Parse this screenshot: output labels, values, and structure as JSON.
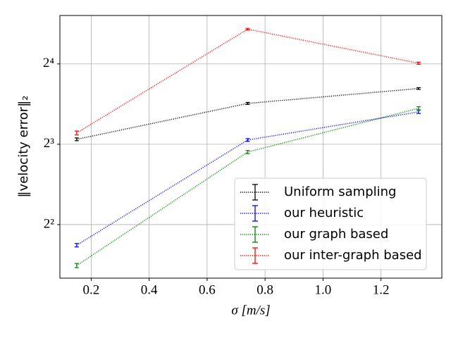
{
  "chart_data": {
    "type": "line",
    "x_label": "σ [m/s]",
    "y_label": "‖velocity error‖₂",
    "x": [
      0.15,
      0.74,
      1.33
    ],
    "series": [
      {
        "name": "Uniform sampling",
        "color": "#000000",
        "values": [
          8.35,
          11.38,
          12.94
        ],
        "errors": [
          0.1,
          0.1,
          0.1
        ]
      },
      {
        "name": "our heuristic",
        "color": "#0000ff",
        "values": [
          3.35,
          8.3,
          10.58
        ],
        "errors": [
          0.05,
          0.1,
          0.15
        ]
      },
      {
        "name": "our graph based",
        "color": "#008000",
        "values": [
          2.81,
          7.48,
          10.91
        ],
        "errors": [
          0.05,
          0.1,
          0.15
        ]
      },
      {
        "name": "our inter-graph based",
        "color": "#ff0000",
        "values": [
          8.82,
          21.6,
          16.1
        ],
        "errors": [
          0.15,
          0.15,
          0.15
        ]
      }
    ],
    "xlim": [
      0.092,
      1.41
    ],
    "ylim": [
      2.52,
      24.3
    ],
    "xticks": [
      0.2,
      0.4,
      0.6,
      0.8,
      {
        "value": 1,
        "label": "1.0"
      },
      1.2
    ],
    "yticks": [
      {
        "value": 4,
        "label": "2²"
      },
      {
        "value": 8,
        "label": "2³"
      },
      {
        "value": 16,
        "label": "2⁴"
      }
    ],
    "y_scale": "log2",
    "grid": true,
    "legend": "lower right"
  }
}
